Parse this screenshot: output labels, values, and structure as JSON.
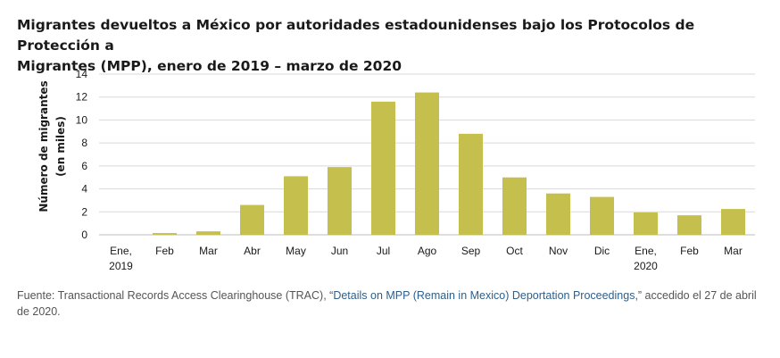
{
  "title": {
    "line1": "Migrantes devueltos a México por autoridades estadounidenses bajo los Protocolos de Protección a",
    "line2": "Migrantes (MPP), enero de 2019 – marzo de 2020"
  },
  "source": {
    "prefix": "Fuente: Transactional Records Access Clearinghouse (TRAC), “",
    "link_text": "Details on MPP (Remain in Mexico) Deportation Proceedings",
    "suffix": ",” accedido el 27 de abril de 2020."
  },
  "colors": {
    "bar": "#c5bf4e",
    "grid": "#d9d9d9",
    "axis": "#bdbdbd",
    "text": "#1a1a1a",
    "link": "#2e5f8a"
  },
  "chart_data": {
    "type": "bar",
    "title": "",
    "ylabel_line1": "Número de migrantes",
    "ylabel_line2": "(en miles)",
    "xlabel": "",
    "ylim": [
      0,
      14
    ],
    "yticks": [
      0,
      2,
      4,
      6,
      8,
      10,
      12,
      14
    ],
    "grid": true,
    "categories": [
      {
        "line1": "Ene,",
        "line2": "2019"
      },
      {
        "line1": "Feb",
        "line2": ""
      },
      {
        "line1": "Mar",
        "line2": ""
      },
      {
        "line1": "Abr",
        "line2": ""
      },
      {
        "line1": "May",
        "line2": ""
      },
      {
        "line1": "Jun",
        "line2": ""
      },
      {
        "line1": "Jul",
        "line2": ""
      },
      {
        "line1": "Ago",
        "line2": ""
      },
      {
        "line1": "Sep",
        "line2": ""
      },
      {
        "line1": "Oct",
        "line2": ""
      },
      {
        "line1": "Nov",
        "line2": ""
      },
      {
        "line1": "Dic",
        "line2": ""
      },
      {
        "line1": "Ene,",
        "line2": "2020"
      },
      {
        "line1": "Feb",
        "line2": ""
      },
      {
        "line1": "Mar",
        "line2": ""
      }
    ],
    "values": [
      0.0,
      0.15,
      0.3,
      2.6,
      5.1,
      5.9,
      11.6,
      12.4,
      8.8,
      5.0,
      3.6,
      3.3,
      1.95,
      1.7,
      2.25
    ]
  }
}
